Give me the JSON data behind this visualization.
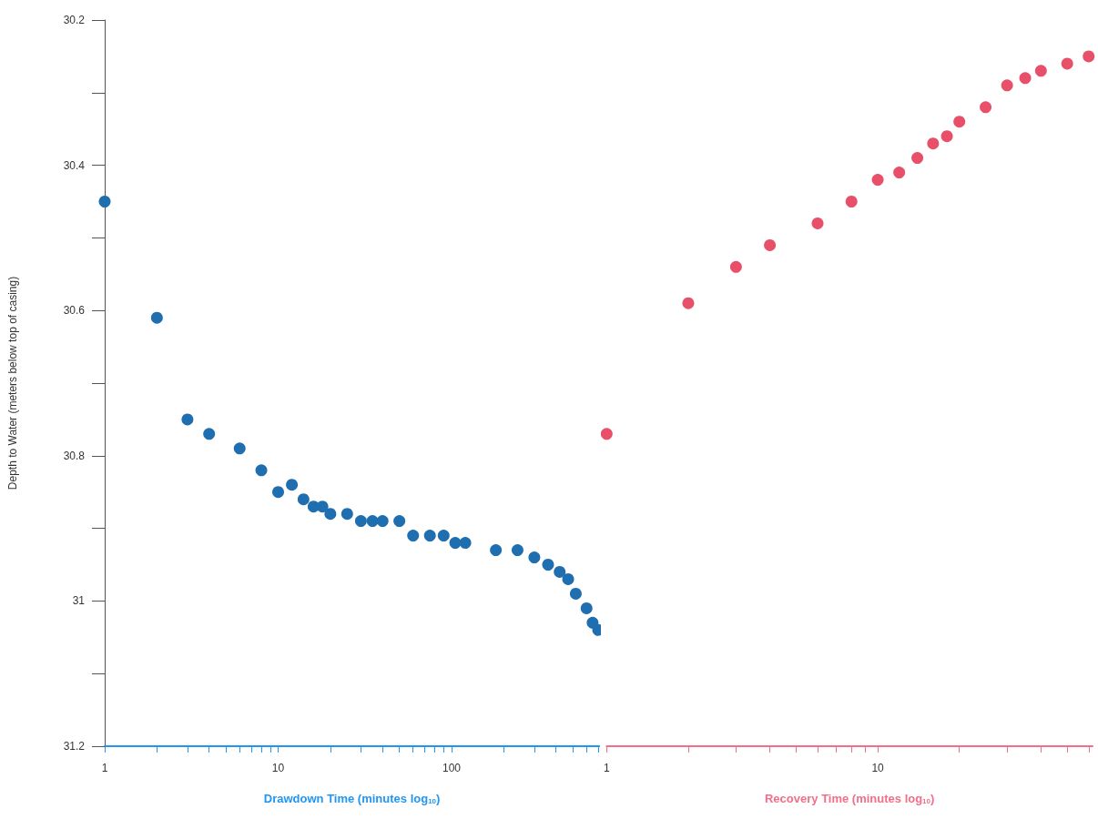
{
  "chart_data": [
    {
      "type": "scatter",
      "xlabel": "Drawdown Time (minutes log$_{10}$)",
      "ylabel": "Depth to Water (meters below top of casing)",
      "log": "x",
      "marker": "circle",
      "grid": false,
      "x": [
        1,
        2,
        3,
        4,
        6,
        8,
        10,
        12,
        14,
        16,
        18,
        20,
        25,
        30,
        35,
        40,
        50,
        60,
        75,
        90,
        105,
        120,
        180,
        240,
        300,
        360,
        420,
        470,
        520,
        600,
        650,
        700
      ],
      "series": [
        {
          "color": "#1f6fb0",
          "values": [
            30.45,
            30.61,
            30.75,
            30.77,
            30.79,
            30.82,
            30.85,
            30.84,
            30.86,
            30.87,
            30.87,
            30.88,
            30.88,
            30.89,
            30.89,
            30.89,
            30.89,
            30.91,
            30.91,
            30.91,
            30.92,
            30.92,
            30.93,
            30.93,
            30.94,
            30.95,
            30.96,
            30.97,
            30.99,
            31.01,
            31.03,
            31.04
          ]
        }
      ],
      "xlim": [
        1,
        710
      ],
      "xticks": [
        1,
        {
          "value": 2,
          "label": null
        },
        {
          "value": 3,
          "label": null
        },
        {
          "value": 4,
          "label": null
        },
        {
          "value": 5,
          "label": null
        },
        {
          "value": 6,
          "label": null
        },
        {
          "value": 7,
          "label": null
        },
        {
          "value": 8,
          "label": null
        },
        {
          "value": 9,
          "label": null
        },
        10,
        {
          "value": 20,
          "label": null
        },
        {
          "value": 30,
          "label": null
        },
        {
          "value": 40,
          "label": null
        },
        {
          "value": 50,
          "label": null
        },
        {
          "value": 60,
          "label": null
        },
        {
          "value": 70,
          "label": null
        },
        {
          "value": 80,
          "label": null
        },
        {
          "value": 90,
          "label": null
        },
        100,
        {
          "value": 200,
          "label": null
        },
        {
          "value": 300,
          "label": null
        },
        {
          "value": 400,
          "label": null
        },
        {
          "value": 500,
          "label": null
        },
        {
          "value": 600,
          "label": null
        },
        {
          "value": 700,
          "label": null
        }
      ],
      "ylim": [
        31.2,
        30.2
      ],
      "yticks": [
        30.2,
        {
          "value": 30.3,
          "label": null
        },
        30.4,
        {
          "value": 30.5,
          "label": null
        },
        30.6,
        {
          "value": 30.7,
          "label": null
        },
        30.8,
        {
          "value": 30.9,
          "label": null
        },
        31,
        {
          "value": 31.1,
          "label": null
        },
        31.2
      ]
    },
    {
      "type": "scatter",
      "xlabel": "Recovery Time (minutes log$_{10}$)",
      "log": "x",
      "marker": "circle",
      "grid": false,
      "tick_labels": "x",
      "x": [
        1,
        2,
        3,
        4,
        6,
        8,
        10,
        12,
        14,
        16,
        18,
        20,
        25,
        30,
        35,
        40,
        50,
        60
      ],
      "series": [
        {
          "color": "#e8506a",
          "values": [
            30.77,
            30.59,
            30.54,
            30.51,
            30.48,
            30.45,
            30.42,
            30.41,
            30.39,
            30.37,
            30.36,
            30.34,
            30.32,
            30.29,
            30.28,
            30.27,
            30.26,
            30.25
          ]
        }
      ],
      "xlim": [
        1,
        62
      ],
      "xticks": [
        1,
        {
          "value": 2,
          "label": null
        },
        {
          "value": 3,
          "label": null
        },
        {
          "value": 4,
          "label": null
        },
        {
          "value": 5,
          "label": null
        },
        {
          "value": 6,
          "label": null
        },
        {
          "value": 7,
          "label": null
        },
        {
          "value": 8,
          "label": null
        },
        {
          "value": 9,
          "label": null
        },
        10,
        {
          "value": 20,
          "label": null
        },
        {
          "value": 30,
          "label": null
        },
        {
          "value": 40,
          "label": null
        },
        {
          "value": 50,
          "label": null
        },
        {
          "value": 60,
          "label": null
        }
      ],
      "ylim": [
        31.2,
        30.2
      ]
    }
  ]
}
